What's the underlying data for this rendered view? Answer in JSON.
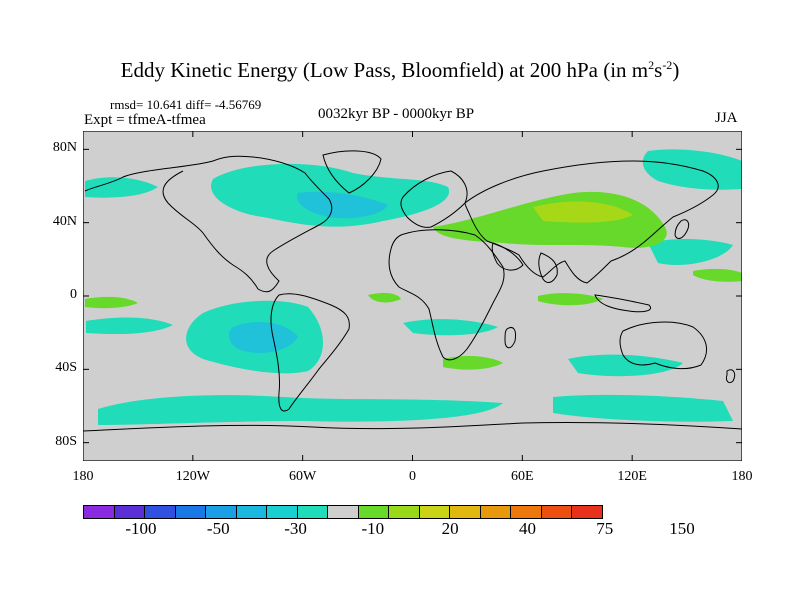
{
  "title": {
    "main": "Eddy Kinetic Energy (Low Pass, Bloomfield) at 200 hPa (in m",
    "sup1": "2",
    "mid": "s",
    "sup2": "-2",
    "end": ")"
  },
  "header": {
    "rmsd": "rmsd= 10.641 diff= -4.56769",
    "expt": "Expt = tfmeA-tfmea",
    "period": "0032kyr BP - 0000kyr BP",
    "season": "JJA"
  },
  "map": {
    "y_ticks": [
      "80N",
      "40N",
      "0",
      "40S",
      "80S"
    ],
    "x_ticks": [
      "180",
      "120W",
      "60W",
      "0",
      "60E",
      "120E",
      "180"
    ],
    "lon_range": [
      -180,
      180
    ],
    "lat_range": [
      -90,
      90
    ]
  },
  "colorbar": {
    "colors": [
      "#8a2be2",
      "#5a2fd6",
      "#3050e0",
      "#1a78e6",
      "#1a9ee6",
      "#1ab8e0",
      "#19cfd0",
      "#20dcb8",
      "#cfcfcf",
      "#66d92a",
      "#9ad81a",
      "#c8d414",
      "#e0b810",
      "#e8980c",
      "#ec780c",
      "#ec5010",
      "#e8301a"
    ],
    "labels": [
      "-100",
      "-50",
      "-30",
      "-10",
      "20",
      "40",
      "75",
      "150"
    ]
  },
  "colors": {
    "land_bg": "#cfcfcf",
    "neg_fill": "#20dcb8",
    "neg_strong": "#1fc2d8",
    "neg_core": "#29b4e6",
    "pos_fill": "#66d92a",
    "pos_strong": "#a6d818"
  }
}
